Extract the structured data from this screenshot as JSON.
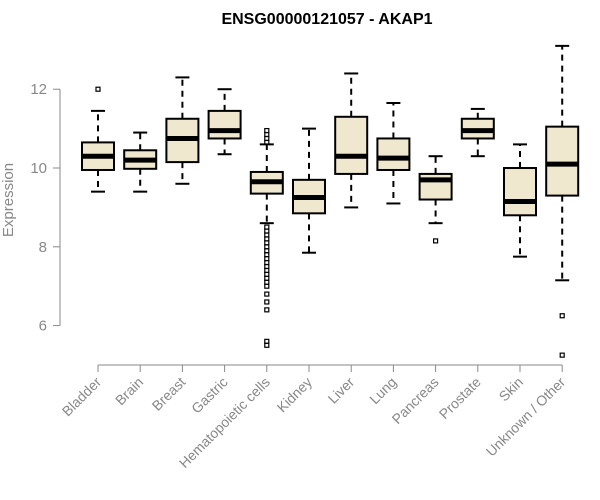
{
  "chart_data": {
    "type": "box",
    "title": "ENSG00000121057 - AKAP1",
    "ylabel": "Expression",
    "xlabel": "",
    "ylim": [
      5.0,
      13.3
    ],
    "yticks": [
      6,
      8,
      10,
      12
    ],
    "grid": false,
    "box_fill": "#efe8cf",
    "categories": [
      "Bladder",
      "Brain",
      "Breast",
      "Gastric",
      "Hematopoietic cells",
      "Kidney",
      "Liver",
      "Lung",
      "Pancreas",
      "Prostate",
      "Skin",
      "Unknown / Other"
    ],
    "boxes": [
      {
        "whisker_low": 9.4,
        "q1": 9.95,
        "median": 10.3,
        "q3": 10.65,
        "whisker_high": 11.45,
        "outliers": [
          12.0
        ]
      },
      {
        "whisker_low": 9.4,
        "q1": 9.98,
        "median": 10.2,
        "q3": 10.45,
        "whisker_high": 10.9,
        "outliers": []
      },
      {
        "whisker_low": 9.6,
        "q1": 10.15,
        "median": 10.75,
        "q3": 11.25,
        "whisker_high": 12.3,
        "outliers": []
      },
      {
        "whisker_low": 10.35,
        "q1": 10.75,
        "median": 10.95,
        "q3": 11.45,
        "whisker_high": 12.0,
        "outliers": []
      },
      {
        "whisker_low": 8.6,
        "q1": 9.35,
        "median": 9.65,
        "q3": 9.9,
        "whisker_high": 10.6,
        "outliers": [
          10.95,
          10.85,
          10.75,
          10.65,
          8.5,
          8.4,
          8.3,
          8.2,
          8.1,
          8.0,
          7.9,
          7.8,
          7.7,
          7.6,
          7.5,
          7.4,
          7.3,
          7.2,
          7.1,
          7.0,
          6.8,
          6.6,
          6.4,
          5.6,
          5.5
        ]
      },
      {
        "whisker_low": 7.85,
        "q1": 8.85,
        "median": 9.25,
        "q3": 9.7,
        "whisker_high": 11.0,
        "outliers": []
      },
      {
        "whisker_low": 9.0,
        "q1": 9.85,
        "median": 10.3,
        "q3": 11.3,
        "whisker_high": 12.4,
        "outliers": []
      },
      {
        "whisker_low": 9.1,
        "q1": 9.95,
        "median": 10.25,
        "q3": 10.75,
        "whisker_high": 11.65,
        "outliers": []
      },
      {
        "whisker_low": 8.6,
        "q1": 9.2,
        "median": 9.7,
        "q3": 9.85,
        "whisker_high": 10.3,
        "outliers": [
          8.15
        ]
      },
      {
        "whisker_low": 10.3,
        "q1": 10.75,
        "median": 10.95,
        "q3": 11.25,
        "whisker_high": 11.5,
        "outliers": []
      },
      {
        "whisker_low": 7.75,
        "q1": 8.8,
        "median": 9.15,
        "q3": 10.0,
        "whisker_high": 10.6,
        "outliers": []
      },
      {
        "whisker_low": 7.15,
        "q1": 9.3,
        "median": 10.1,
        "q3": 11.05,
        "whisker_high": 13.1,
        "outliers": [
          6.25,
          5.25
        ]
      }
    ]
  }
}
